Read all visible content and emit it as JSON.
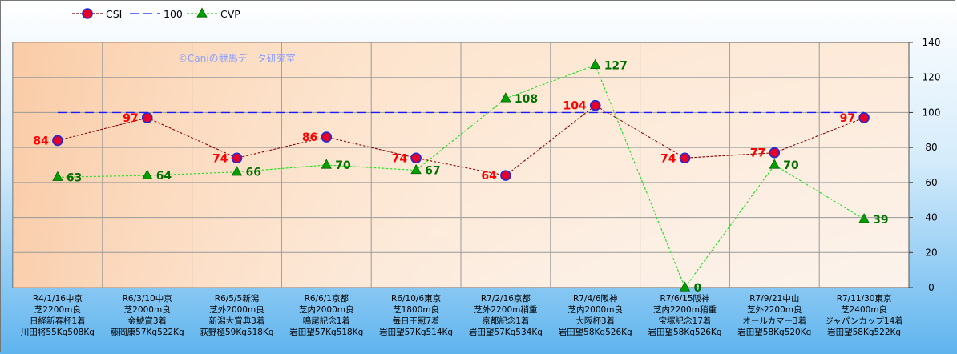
{
  "chart_data": {
    "type": "line",
    "watermark": "©Caniの競馬データ研究室",
    "legend_position": "top-left",
    "grid": true,
    "ylim": [
      0,
      140
    ],
    "yticks": [
      0,
      20,
      40,
      60,
      80,
      100,
      120,
      140
    ],
    "y_axis_side": "right",
    "categories": [
      [
        "R4/1/16中京",
        "芝2200m良",
        "日経新春杯1着",
        "川田将55Kg508Kg"
      ],
      [
        "R6/3/10中京",
        "芝2000m良",
        "金鯱賞3着",
        "藤岡康57Kg522Kg"
      ],
      [
        "R6/5/5新潟",
        "芝外2000m良",
        "新潟大賞典3着",
        "荻野極59Kg518Kg"
      ],
      [
        "R6/6/1京都",
        "芝内2000m良",
        "鳴尾記念1着",
        "岩田望57Kg518Kg"
      ],
      [
        "R6/10/6東京",
        "芝1800m良",
        "毎日王冠7着",
        "岩田望57Kg514Kg"
      ],
      [
        "R7/2/16京都",
        "芝外2200m稍重",
        "京都記念1着",
        "岩田望57Kg534Kg"
      ],
      [
        "R7/4/6阪神",
        "芝内2000m良",
        "大阪杯3着",
        "岩田望58Kg526Kg"
      ],
      [
        "R7/6/15阪神",
        "芝内2200m稍重",
        "宝塚記念17着",
        "岩田望58Kg526Kg"
      ],
      [
        "R7/9/21中山",
        "芝外2200m良",
        "オールカマー3着",
        "岩田望58Kg520Kg"
      ],
      [
        "R7/11/30東京",
        "芝2400m良",
        "ジャパンカップ14着",
        "岩田望58Kg522Kg"
      ]
    ],
    "series": [
      {
        "name": "CSI",
        "values": [
          84,
          97,
          74,
          86,
          74,
          64,
          104,
          74,
          77,
          97
        ],
        "color": "#8b0000",
        "marker": "circle",
        "marker_fill": "#e4002b",
        "marker_stroke": "#1f2bd6",
        "label_color": "#ff0000",
        "label_side": "left",
        "style": "dotted"
      },
      {
        "name": "100",
        "values": [
          100,
          100,
          100,
          100,
          100,
          100,
          100,
          100,
          100,
          100
        ],
        "color": "#1a1aff",
        "marker": "none",
        "style": "dashed"
      },
      {
        "name": "CVP",
        "values": [
          63,
          64,
          66,
          70,
          67,
          108,
          127,
          0,
          70,
          39
        ],
        "color": "#22dd22",
        "marker": "triangle",
        "marker_fill": "#00a000",
        "label_color": "#007000",
        "label_side": "right",
        "style": "dotted"
      }
    ]
  }
}
